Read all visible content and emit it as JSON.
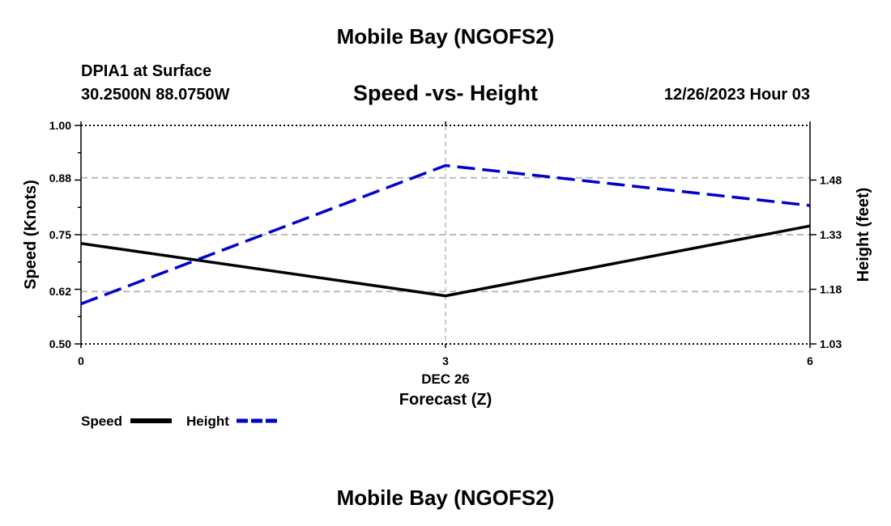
{
  "header": {
    "title": "Mobile Bay (NGOFS2)",
    "station": "DPIA1 at Surface",
    "coordinates": "30.2500N  88.0750W",
    "chart_title": "Speed -vs- Height",
    "datetime": "12/26/2023 Hour 03"
  },
  "footer": {
    "title": "Mobile Bay (NGOFS2)"
  },
  "legend": {
    "speed_label": "Speed",
    "height_label": "Height"
  },
  "chart_data": {
    "type": "line",
    "title": "Speed -vs- Height",
    "xlabel": "Forecast (Z)",
    "xsublabel": "DEC 26",
    "ylabel": "Speed (Knots)",
    "y2label": "Height (feet)",
    "x": [
      0,
      3,
      6
    ],
    "xticks": [
      "0",
      "3",
      "6"
    ],
    "xlim": [
      0,
      6
    ],
    "ylim": [
      0.5,
      1.0
    ],
    "yticks": [
      "0.50",
      "0.62",
      "0.75",
      "0.88",
      "1.00"
    ],
    "y2lim": [
      1.03,
      1.63
    ],
    "y2ticks": [
      "1.03",
      "1.18",
      "1.33",
      "1.48"
    ],
    "grid": true,
    "legend_position": "bottom-left",
    "series": [
      {
        "name": "Speed",
        "axis": "left",
        "values": [
          0.73,
          0.61,
          0.77
        ],
        "color": "#000000",
        "style": "solid"
      },
      {
        "name": "Height",
        "axis": "right",
        "values": [
          1.14,
          1.52,
          1.41
        ],
        "color": "#0000cc",
        "style": "dashed"
      }
    ]
  }
}
